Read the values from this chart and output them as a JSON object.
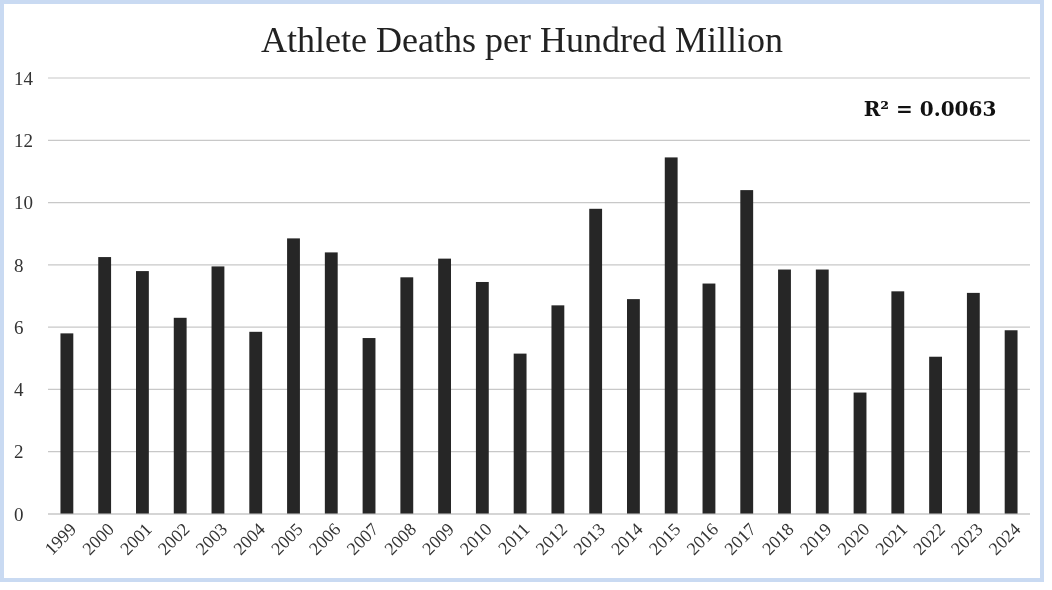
{
  "chart_data": {
    "type": "bar",
    "title": "Athlete Deaths per Hundred Million",
    "categories": [
      "1999",
      "2000",
      "2001",
      "2002",
      "2003",
      "2004",
      "2005",
      "2006",
      "2007",
      "2008",
      "2009",
      "2010",
      "2011",
      "2012",
      "2013",
      "2014",
      "2015",
      "2016",
      "2017",
      "2018",
      "2019",
      "2020",
      "2021",
      "2022",
      "2023",
      "2024"
    ],
    "values": [
      5.8,
      8.25,
      7.8,
      6.3,
      7.95,
      5.85,
      8.85,
      8.4,
      5.65,
      7.6,
      8.2,
      7.45,
      5.15,
      6.7,
      9.8,
      6.9,
      11.45,
      7.4,
      10.4,
      7.85,
      7.85,
      3.9,
      7.15,
      5.05,
      7.1,
      5.9
    ],
    "color": "#262626",
    "ylim": [
      0,
      14
    ],
    "yticks": [
      0,
      2,
      4,
      6,
      8,
      10,
      12,
      14
    ],
    "grid": "y",
    "annotations": [
      "R² = 0.0063"
    ]
  }
}
